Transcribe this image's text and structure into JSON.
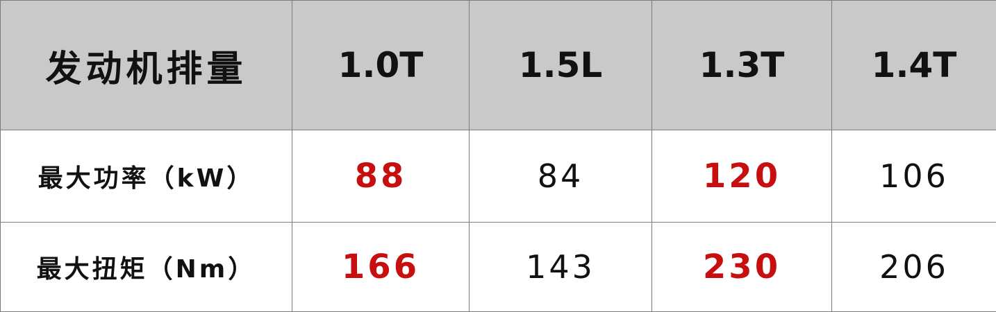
{
  "table": {
    "header": [
      "发动机排量",
      "1.0T",
      "1.5L",
      "1.3T",
      "1.4T"
    ],
    "rows": [
      [
        "最大功率（kW）",
        "88",
        "84",
        "120",
        "106"
      ],
      [
        "最大扭矩（Nm）",
        "166",
        "143",
        "230",
        "206"
      ]
    ]
  }
}
